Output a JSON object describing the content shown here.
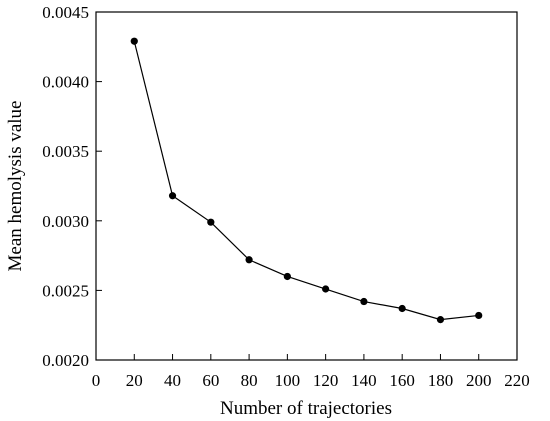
{
  "chart_data": {
    "type": "line",
    "title": "",
    "xlabel": "Number of trajectories",
    "ylabel": "Mean hemolysis value",
    "xlim": [
      0,
      220
    ],
    "ylim": [
      0.002,
      0.0045
    ],
    "x_ticks": [
      0,
      20,
      40,
      60,
      80,
      100,
      120,
      140,
      160,
      180,
      200,
      220
    ],
    "x_tick_labels": [
      "0",
      "20",
      "40",
      "60",
      "80",
      "100",
      "120",
      "140",
      "160",
      "180",
      "200",
      "220"
    ],
    "y_ticks": [
      0.002,
      0.0025,
      0.003,
      0.0035,
      0.004,
      0.0045
    ],
    "y_tick_labels": [
      "0.0020",
      "0.0025",
      "0.0030",
      "0.0035",
      "0.0040",
      "0.0045"
    ],
    "grid": false,
    "legend": "none",
    "series": [
      {
        "color": "#000000",
        "marker": "filled-circle",
        "x": [
          20,
          40,
          60,
          80,
          100,
          120,
          140,
          160,
          180,
          200
        ],
        "y": [
          0.00429,
          0.00318,
          0.00299,
          0.00272,
          0.0026,
          0.00251,
          0.00242,
          0.00237,
          0.00229,
          0.00232
        ]
      }
    ]
  }
}
